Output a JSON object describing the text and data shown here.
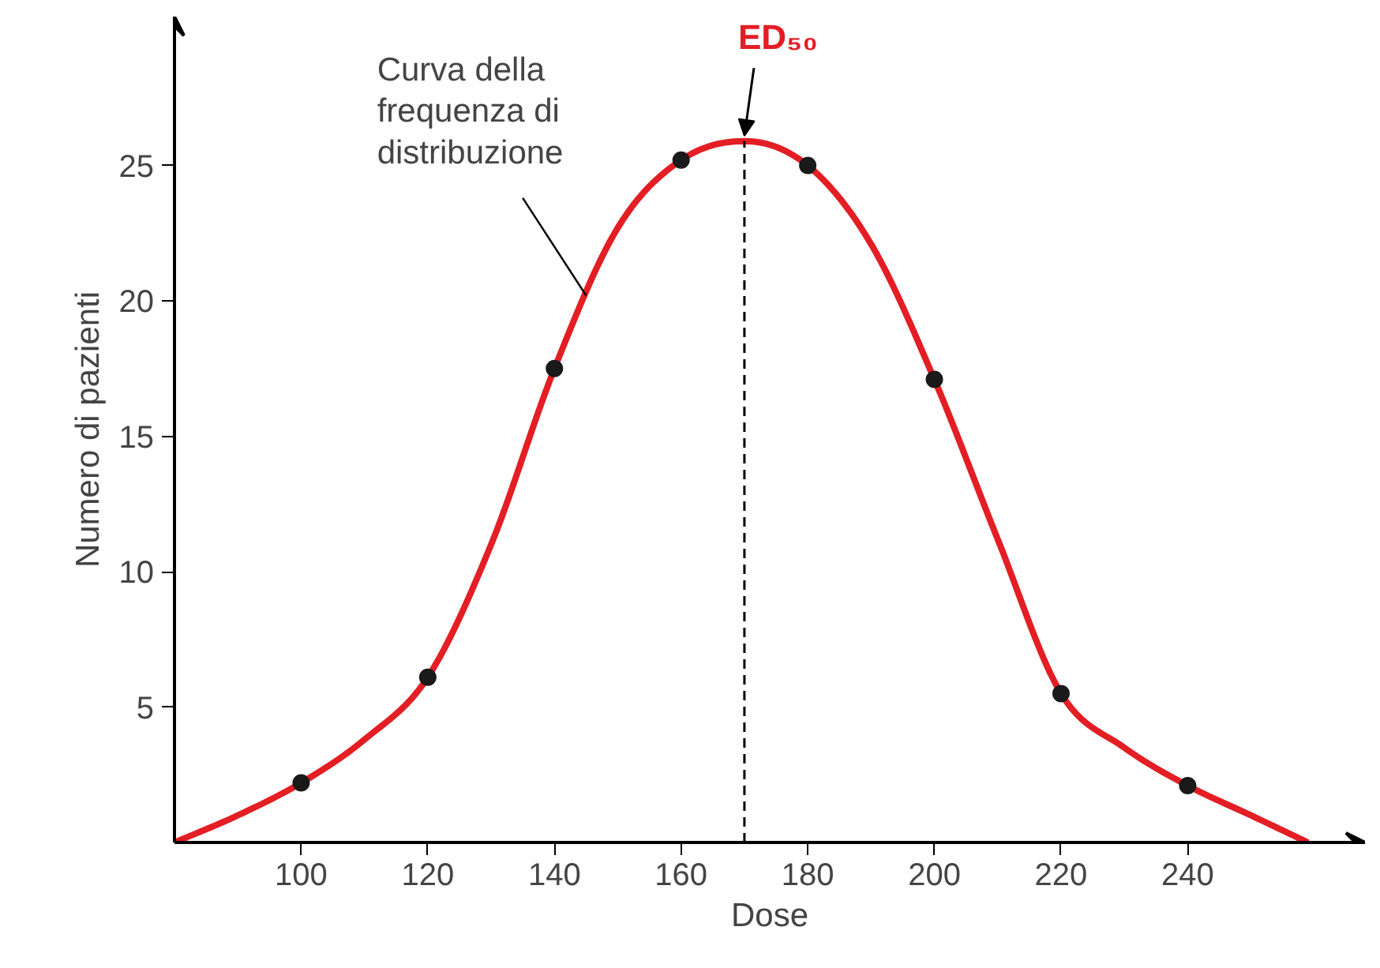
{
  "chart_data": {
    "type": "line",
    "xlabel": "Dose",
    "ylabel": "Numero di pazienti",
    "series": [
      {
        "color": "#e31e24",
        "marker": "none",
        "x": [
          80,
          90,
          100,
          110,
          120,
          130,
          140,
          150,
          160,
          170,
          180,
          190,
          200,
          210,
          220,
          230,
          240,
          250,
          259
        ],
        "values": [
          0,
          1.0,
          2.2,
          3.8,
          6.1,
          11,
          17.5,
          22.7,
          25.2,
          25.9,
          25.0,
          22.1,
          17.1,
          11.2,
          5.5,
          3.5,
          2.1,
          1.0,
          0
        ]
      },
      {
        "type": "scatter",
        "color": "#1a1a1a",
        "marker": "circle",
        "x": [
          100,
          120,
          140,
          160,
          180,
          200,
          220,
          240
        ],
        "values": [
          2.2,
          6.1,
          17.5,
          25.2,
          25.0,
          17.1,
          5.5,
          2.1
        ]
      }
    ],
    "xlim": [
      80,
      268
    ],
    "ylim": [
      0,
      30.5
    ],
    "xticks": [
      100,
      120,
      140,
      160,
      180,
      200,
      220,
      240
    ],
    "yticks": [
      5,
      10,
      15,
      20,
      25
    ],
    "grid": false,
    "ref_lines": [
      {
        "axis": "x",
        "value": 170,
        "label": "ED₅₀",
        "line_style": "dashed"
      }
    ],
    "annotations": [
      {
        "text": "Curva della\nfrequenza di\ndistribuzione",
        "x": 145,
        "y": 20.2
      }
    ]
  }
}
